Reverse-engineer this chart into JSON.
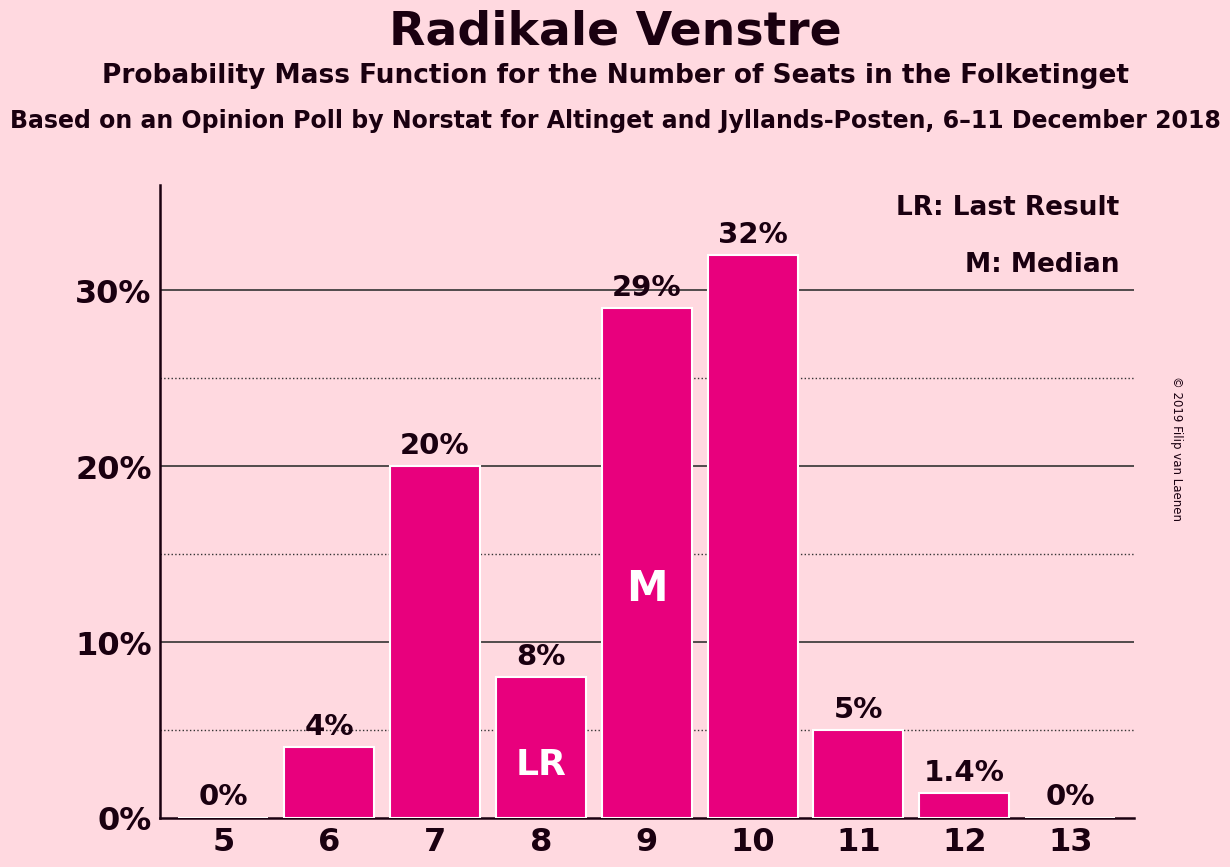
{
  "title": "Radikale Venstre",
  "subtitle": "Probability Mass Function for the Number of Seats in the Folketinget",
  "source_line": "Based on an Opinion Poll by Norstat for Altinget and Jyllands-Posten, 6–11 December 2018",
  "copyright": "© 2019 Filip van Laenen",
  "categories": [
    5,
    6,
    7,
    8,
    9,
    10,
    11,
    12,
    13
  ],
  "values": [
    0,
    4,
    20,
    8,
    29,
    32,
    5,
    1.4,
    0
  ],
  "labels": [
    "0%",
    "4%",
    "20%",
    "8%",
    "29%",
    "32%",
    "5%",
    "1.4%",
    "0%"
  ],
  "bar_color": "#E8007D",
  "background_color": "#FFD9E0",
  "text_color": "#1a0010",
  "yticks": [
    0,
    10,
    20,
    30
  ],
  "ylim": [
    0,
    36
  ],
  "lr_bar": 8,
  "median_bar": 9,
  "lr_label": "LR: Last Result",
  "median_label": "M: Median",
  "grid_color": "#333333",
  "solid_grid_values": [
    10,
    20,
    30
  ],
  "dotted_grid_values": [
    5,
    15,
    25
  ],
  "title_fontsize": 34,
  "subtitle_fontsize": 19,
  "source_fontsize": 17,
  "bar_label_fontsize": 21,
  "axis_tick_fontsize": 23,
  "legend_fontsize": 19,
  "inbar_fontsize_lr": 26,
  "inbar_fontsize_m": 30
}
